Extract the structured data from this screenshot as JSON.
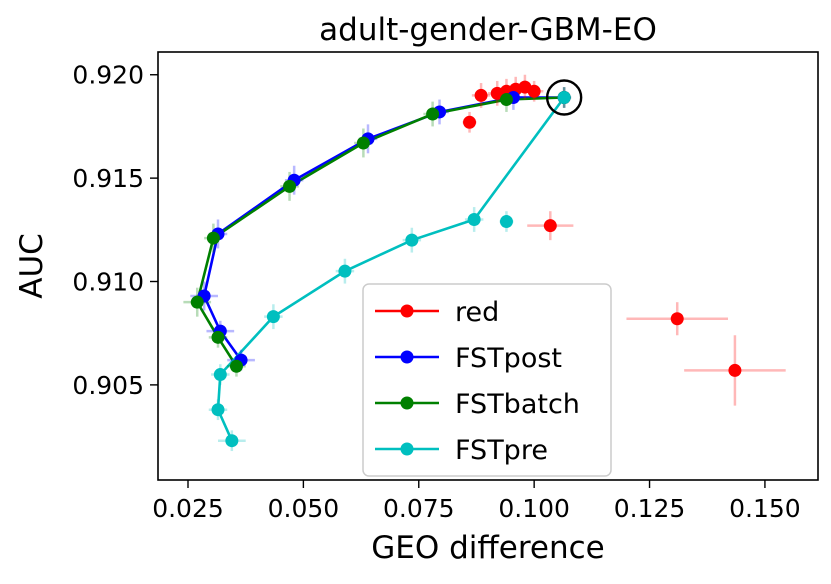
{
  "chart_data": {
    "type": "scatter",
    "title": "adult-gender-GBM-EO",
    "xlabel": "GEO difference",
    "ylabel": "AUC",
    "xlim": [
      0.0185,
      0.1615
    ],
    "ylim": [
      0.9004,
      0.9211
    ],
    "xticks": [
      0.025,
      0.05,
      0.075,
      0.1,
      0.125,
      0.15
    ],
    "xtick_labels": [
      "0.025",
      "0.050",
      "0.075",
      "0.100",
      "0.125",
      "0.150"
    ],
    "yticks": [
      0.905,
      0.91,
      0.915,
      0.92
    ],
    "ytick_labels": [
      "0.905",
      "0.910",
      "0.915",
      "0.920"
    ],
    "legend_position": "lower-center",
    "highlight_point": {
      "x": 0.1065,
      "y": 0.9189
    },
    "series": [
      {
        "name": "red",
        "color": "#ff0000",
        "line": false,
        "points": [
          {
            "x": 0.1065,
            "y": 0.9189,
            "xe": 0.0015,
            "ye": 0.0005
          },
          {
            "x": 0.1,
            "y": 0.9192,
            "xe": 0.002,
            "ye": 0.0005
          },
          {
            "x": 0.098,
            "y": 0.9194,
            "xe": 0.002,
            "ye": 0.0006
          },
          {
            "x": 0.096,
            "y": 0.9193,
            "xe": 0.002,
            "ye": 0.0006
          },
          {
            "x": 0.094,
            "y": 0.9192,
            "xe": 0.002,
            "ye": 0.0006
          },
          {
            "x": 0.092,
            "y": 0.9191,
            "xe": 0.002,
            "ye": 0.0006
          },
          {
            "x": 0.0885,
            "y": 0.919,
            "xe": 0.002,
            "ye": 0.0006
          },
          {
            "x": 0.086,
            "y": 0.9177,
            "xe": 0.0015,
            "ye": 0.0005
          },
          {
            "x": 0.1035,
            "y": 0.9127,
            "xe": 0.005,
            "ye": 0.0007
          },
          {
            "x": 0.131,
            "y": 0.9082,
            "xe": 0.011,
            "ye": 0.0008
          },
          {
            "x": 0.1435,
            "y": 0.9057,
            "xe": 0.011,
            "ye": 0.0017
          }
        ]
      },
      {
        "name": "FSTpost",
        "color": "#0000ff",
        "line": true,
        "points": [
          {
            "x": 0.1065,
            "y": 0.9189,
            "xe": 0.0015,
            "ye": 0.0005
          },
          {
            "x": 0.0955,
            "y": 0.9189,
            "xe": 0.002,
            "ye": 0.0006
          },
          {
            "x": 0.0795,
            "y": 0.9182,
            "xe": 0.002,
            "ye": 0.0006
          },
          {
            "x": 0.064,
            "y": 0.9169,
            "xe": 0.002,
            "ye": 0.0007
          },
          {
            "x": 0.048,
            "y": 0.9149,
            "xe": 0.002,
            "ye": 0.0007
          },
          {
            "x": 0.0315,
            "y": 0.9123,
            "xe": 0.002,
            "ye": 0.0007
          },
          {
            "x": 0.0285,
            "y": 0.9093,
            "xe": 0.003,
            "ye": 0.0007
          },
          {
            "x": 0.032,
            "y": 0.9076,
            "xe": 0.003,
            "ye": 0.0005
          },
          {
            "x": 0.0365,
            "y": 0.9062,
            "xe": 0.003,
            "ye": 0.0005
          }
        ]
      },
      {
        "name": "FSTbatch",
        "color": "#008000",
        "line": true,
        "points": [
          {
            "x": 0.1065,
            "y": 0.9189,
            "xe": 0.0015,
            "ye": 0.0005
          },
          {
            "x": 0.094,
            "y": 0.9188,
            "xe": 0.002,
            "ye": 0.0006
          },
          {
            "x": 0.078,
            "y": 0.9181,
            "xe": 0.002,
            "ye": 0.0006
          },
          {
            "x": 0.063,
            "y": 0.9167,
            "xe": 0.002,
            "ye": 0.0007
          },
          {
            "x": 0.047,
            "y": 0.9146,
            "xe": 0.002,
            "ye": 0.0007
          },
          {
            "x": 0.0305,
            "y": 0.9121,
            "xe": 0.002,
            "ye": 0.0007
          },
          {
            "x": 0.027,
            "y": 0.909,
            "xe": 0.003,
            "ye": 0.0007
          },
          {
            "x": 0.0315,
            "y": 0.9073,
            "xe": 0.002,
            "ye": 0.0005
          },
          {
            "x": 0.0355,
            "y": 0.9059,
            "xe": 0.002,
            "ye": 0.0005
          }
        ]
      },
      {
        "name": "FSTpre",
        "color": "#00bfbf",
        "line": true,
        "points": [
          {
            "x": 0.1065,
            "y": 0.9189,
            "xe": 0.0015,
            "ye": 0.0005
          },
          {
            "x": 0.087,
            "y": 0.913,
            "xe": 0.002,
            "ye": 0.0006
          },
          {
            "x": 0.0735,
            "y": 0.912,
            "xe": 0.002,
            "ye": 0.0006
          },
          {
            "x": 0.059,
            "y": 0.9105,
            "xe": 0.002,
            "ye": 0.0006
          },
          {
            "x": 0.0435,
            "y": 0.9083,
            "xe": 0.002,
            "ye": 0.0006
          },
          {
            "x": 0.032,
            "y": 0.9055,
            "xe": 0.002,
            "ye": 0.0005
          },
          {
            "x": 0.0315,
            "y": 0.9038,
            "xe": 0.002,
            "ye": 0.0005
          },
          {
            "x": 0.0345,
            "y": 0.9023,
            "xe": 0.003,
            "ye": 0.0005
          },
          {
            "x": 0.094,
            "y": 0.9129,
            "xe": 0.0015,
            "ye": 0.0005,
            "unconnected": true
          }
        ]
      }
    ]
  }
}
